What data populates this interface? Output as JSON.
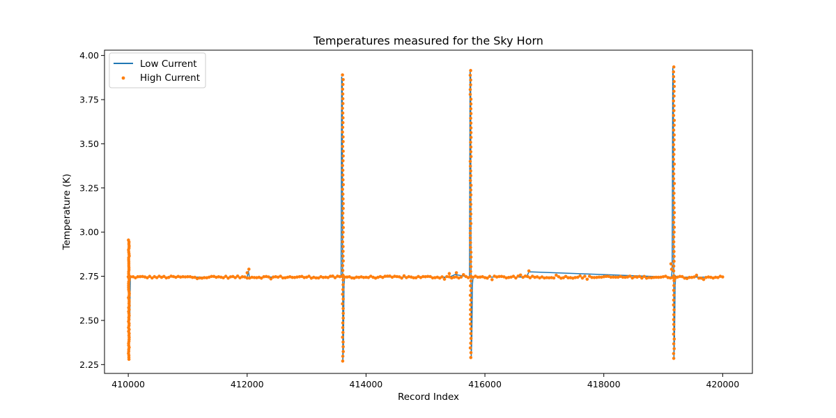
{
  "chart_data": {
    "type": "line",
    "title": "Temperatures measured for the Sky Horn",
    "xlabel": "Record Index",
    "ylabel": "Temperature (K)",
    "xlim": [
      409600,
      420500
    ],
    "ylim": [
      2.2,
      4.03
    ],
    "xticks": [
      410000,
      412000,
      414000,
      416000,
      418000,
      420000
    ],
    "yticks": [
      2.25,
      2.5,
      2.75,
      3.0,
      3.25,
      3.5,
      3.75,
      4.0
    ],
    "ytick_labels": [
      "2.25",
      "2.50",
      "2.75",
      "3.00",
      "3.25",
      "3.50",
      "3.75",
      "4.00"
    ],
    "grid": false,
    "legend_position": "top-left",
    "baseline": 2.745,
    "series": [
      {
        "name": "Low Current",
        "kind": "line",
        "color": "#1f77b4",
        "x": [
          410000,
          410005,
          410010,
          410015,
          410020,
          410025,
          410035,
          410050,
          412000,
          412020,
          412040,
          412060,
          413580,
          413590,
          413600,
          413610,
          413620,
          413630,
          413640,
          413650,
          413670,
          415400,
          415500,
          415740,
          415750,
          415760,
          415770,
          415780,
          415790,
          415800,
          415820,
          416700,
          416740,
          419140,
          419150,
          419160,
          419170,
          419180,
          419190,
          419200,
          419210,
          419220,
          419240,
          420000
        ],
        "y": [
          2.95,
          2.28,
          2.95,
          2.4,
          2.75,
          2.5,
          2.745,
          2.745,
          2.745,
          2.78,
          2.74,
          2.745,
          2.745,
          3.88,
          3.85,
          2.27,
          2.35,
          2.7,
          2.745,
          2.745,
          2.745,
          2.745,
          2.76,
          2.745,
          3.91,
          3.88,
          2.29,
          2.4,
          2.7,
          2.745,
          2.745,
          2.745,
          2.775,
          2.745,
          2.79,
          3.93,
          3.88,
          2.29,
          2.4,
          2.7,
          2.75,
          2.745,
          2.745,
          2.745
        ]
      },
      {
        "name": "High Current",
        "kind": "scatter",
        "color": "#ff7f0e",
        "spikes": [
          {
            "x": 410010,
            "ymax": 2.955,
            "ymin": 2.28
          },
          {
            "x": 413610,
            "ymax": 3.89,
            "ymin": 2.27
          },
          {
            "x": 415760,
            "ymax": 3.915,
            "ymin": 2.29
          },
          {
            "x": 419180,
            "ymax": 3.935,
            "ymin": 2.285
          }
        ],
        "outliers": [
          {
            "x": 412030,
            "y": 2.79
          },
          {
            "x": 412000,
            "y": 2.77
          },
          {
            "x": 415400,
            "y": 2.765
          },
          {
            "x": 415520,
            "y": 2.77
          },
          {
            "x": 416740,
            "y": 2.78
          },
          {
            "x": 419130,
            "y": 2.82
          },
          {
            "x": 419140,
            "y": 2.79
          }
        ]
      }
    ]
  }
}
